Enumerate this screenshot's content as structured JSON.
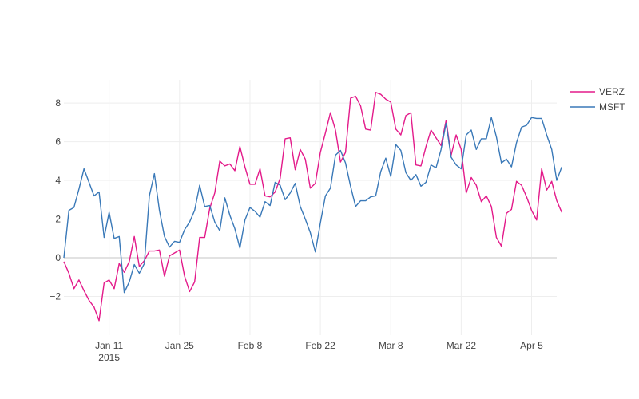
{
  "chart_data": {
    "type": "line",
    "title": "",
    "xlabel": "",
    "ylabel": "",
    "x_start": "2015-01-02",
    "x_range": [
      "2015-01-02",
      "2015-04-10"
    ],
    "ylim": [
      -4.0,
      9.2
    ],
    "grid": true,
    "legend_position": "top-right",
    "x_ticks": [
      {
        "date": "2015-01-11",
        "label": "Jan 11",
        "sublabel": "2015"
      },
      {
        "date": "2015-01-25",
        "label": "Jan 25",
        "sublabel": ""
      },
      {
        "date": "2015-02-08",
        "label": "Feb 8",
        "sublabel": ""
      },
      {
        "date": "2015-02-22",
        "label": "Feb 22",
        "sublabel": ""
      },
      {
        "date": "2015-03-08",
        "label": "Mar 8",
        "sublabel": ""
      },
      {
        "date": "2015-03-22",
        "label": "Mar 22",
        "sublabel": ""
      },
      {
        "date": "2015-04-05",
        "label": "Apr 5",
        "sublabel": ""
      }
    ],
    "y_ticks": [
      {
        "value": -2,
        "label": "−2"
      },
      {
        "value": 0,
        "label": "0"
      },
      {
        "value": 2,
        "label": "2"
      },
      {
        "value": 4,
        "label": "4"
      },
      {
        "value": 6,
        "label": "6"
      },
      {
        "value": 8,
        "label": "8"
      }
    ],
    "series": [
      {
        "name": "VERZ",
        "color": "#e31a8a",
        "values": [
          -0.2,
          -0.8,
          -1.6,
          -1.15,
          -1.7,
          -2.2,
          -2.55,
          -3.25,
          -1.3,
          -1.15,
          -1.6,
          -0.3,
          -0.75,
          -0.2,
          1.1,
          -0.45,
          -0.15,
          0.35,
          0.35,
          0.4,
          -0.95,
          0.1,
          0.25,
          0.4,
          -0.95,
          -1.75,
          -1.25,
          1.05,
          1.05,
          2.55,
          3.35,
          5.0,
          4.75,
          4.85,
          4.5,
          5.75,
          4.7,
          3.8,
          3.8,
          4.6,
          3.2,
          3.15,
          3.4,
          4.1,
          6.15,
          6.2,
          4.55,
          5.6,
          5.1,
          3.6,
          3.85,
          5.45,
          6.45,
          7.5,
          6.6,
          4.95,
          5.45,
          8.25,
          8.35,
          7.85,
          6.65,
          6.6,
          8.55,
          8.45,
          8.2,
          8.05,
          6.65,
          6.35,
          7.35,
          7.5,
          4.8,
          4.75,
          5.75,
          6.6,
          6.2,
          5.8,
          7.1,
          5.3,
          6.35,
          5.6,
          3.35,
          4.15,
          3.75,
          2.9,
          3.2,
          2.65,
          1.05,
          0.6,
          2.3,
          2.5,
          3.95,
          3.75,
          3.15,
          2.45,
          1.95,
          4.6,
          3.5,
          3.95,
          2.95,
          2.35
        ]
      },
      {
        "name": "MSFT",
        "color": "#3a79b8",
        "values": [
          0.0,
          2.45,
          2.6,
          3.55,
          4.6,
          3.9,
          3.2,
          3.4,
          1.05,
          2.35,
          1.0,
          1.1,
          -1.8,
          -1.25,
          -0.35,
          -0.8,
          -0.3,
          3.2,
          4.35,
          2.45,
          1.1,
          0.55,
          0.85,
          0.8,
          1.45,
          1.85,
          2.45,
          3.75,
          2.65,
          2.7,
          1.85,
          1.4,
          3.1,
          2.2,
          1.5,
          0.5,
          1.95,
          2.6,
          2.4,
          2.1,
          2.9,
          2.7,
          3.9,
          3.75,
          3.0,
          3.35,
          3.85,
          2.65,
          2.0,
          1.3,
          0.3,
          1.8,
          3.2,
          3.6,
          5.3,
          5.55,
          4.9,
          3.7,
          2.65,
          2.95,
          2.95,
          3.15,
          3.2,
          4.45,
          5.15,
          4.2,
          5.85,
          5.55,
          4.4,
          4.0,
          4.3,
          3.7,
          3.9,
          4.8,
          4.65,
          5.6,
          6.95,
          5.2,
          4.8,
          4.6,
          6.35,
          6.6,
          5.6,
          6.15,
          6.15,
          7.25,
          6.25,
          4.9,
          5.1,
          4.7,
          5.95,
          6.75,
          6.85,
          7.25,
          7.2,
          7.2,
          6.35,
          5.6,
          4.0,
          4.7
        ]
      }
    ]
  }
}
